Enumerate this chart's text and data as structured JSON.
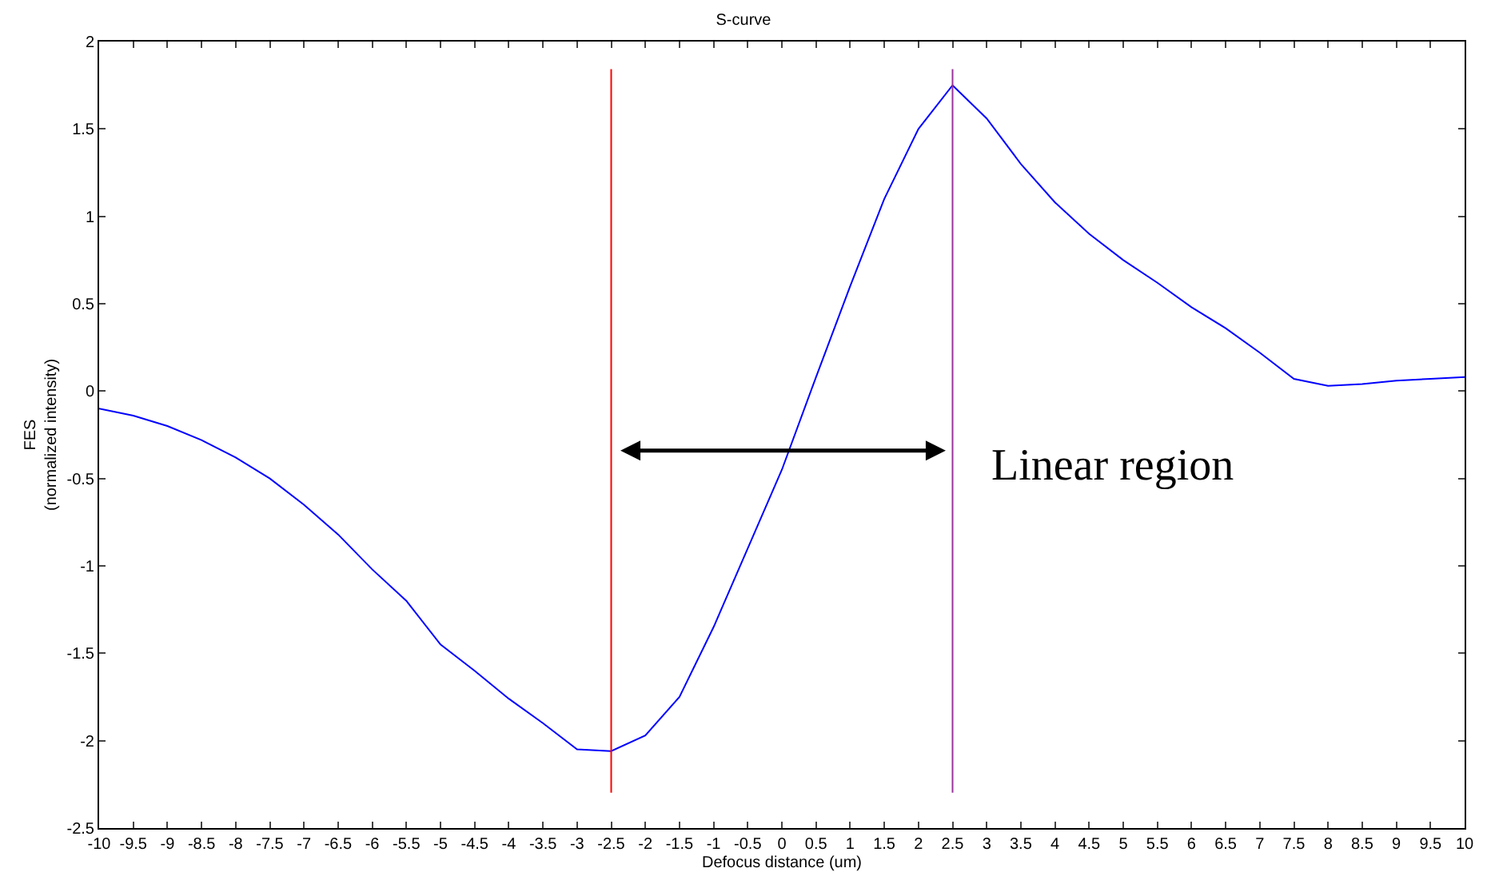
{
  "chart_data": {
    "type": "line",
    "title": "S-curve",
    "xlabel": "Defocus distance (um)",
    "ylabel": "FES\n(normalized intensity)",
    "x": [
      -10,
      -9.5,
      -9,
      -8.5,
      -8,
      -7.5,
      -7,
      -6.5,
      -6,
      -5.5,
      -5,
      -4.5,
      -4,
      -3.5,
      -3,
      -2.5,
      -2,
      -1.5,
      -1,
      -0.5,
      0,
      0.5,
      1,
      1.5,
      2,
      2.5,
      3,
      3.5,
      4,
      4.5,
      5,
      5.5,
      6,
      6.5,
      7,
      7.5,
      8,
      8.5,
      9,
      9.5,
      10
    ],
    "series": [
      {
        "color": "#0000ff",
        "values": [
          -0.1,
          -0.14,
          -0.2,
          -0.28,
          -0.38,
          -0.5,
          -0.65,
          -0.82,
          -1.02,
          -1.2,
          -1.45,
          -1.6,
          -1.76,
          -1.9,
          -2.05,
          -2.06,
          -1.97,
          -1.75,
          -1.35,
          -0.9,
          -0.45,
          0.08,
          0.6,
          1.1,
          1.5,
          1.75,
          1.56,
          1.3,
          1.08,
          0.9,
          0.75,
          0.62,
          0.48,
          0.36,
          0.22,
          0.07,
          0.03,
          0.04,
          0.06,
          0.07,
          0.08
        ]
      }
    ],
    "ref_lines": [
      {
        "axis": "x",
        "value": -2.5,
        "color": "#ff0000"
      },
      {
        "axis": "x",
        "value": 2.5,
        "color": "#993399"
      }
    ],
    "annotations": [
      {
        "text": "Linear region",
        "x": 2.5,
        "y": -0.34
      }
    ],
    "xlim": [
      -10,
      10
    ],
    "xticks": [
      -10,
      -9.5,
      -9,
      -8.5,
      -8,
      -7.5,
      -7,
      -6.5,
      -6,
      -5.5,
      -5,
      -4.5,
      -4,
      -3.5,
      -3,
      -2.5,
      -2,
      -1.5,
      -1,
      -0.5,
      0,
      0.5,
      1,
      1.5,
      2,
      2.5,
      3,
      3.5,
      4,
      4.5,
      5,
      5.5,
      6,
      6.5,
      7,
      7.5,
      8,
      8.5,
      9,
      9.5,
      10
    ],
    "ylim": [
      -2.5,
      2
    ],
    "yticks": [
      -2.5,
      -2,
      -1.5,
      -1,
      -0.5,
      0,
      0.5,
      1,
      1.5,
      2
    ],
    "grid": false,
    "marker": "none",
    "line_style": "solid"
  }
}
